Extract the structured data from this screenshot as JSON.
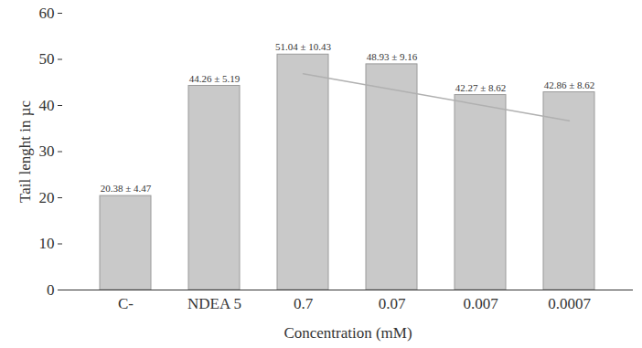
{
  "chart_data": {
    "type": "bar",
    "x_label": "Concentration (mM)",
    "y_label": "Tail lenght in µc",
    "categories": [
      "C-",
      "NDEA 5",
      "0.7",
      "0.07",
      "0.007",
      "0.0007"
    ],
    "values": [
      20.38,
      44.26,
      51.04,
      48.93,
      42.27,
      42.86
    ],
    "value_labels": [
      "20.38 ± 4.47",
      "44.26 ± 5.19",
      "51.04 ± 10.43",
      "48.93 ± 9.16",
      "42.27 ± 8.62",
      "42.86 ± 8.62"
    ],
    "data_labels": true,
    "color": "#c9c9c9",
    "trend_line": {
      "categories": [
        "0.7",
        "0.0007"
      ],
      "values": [
        46.9,
        36.7
      ],
      "color": "#b0b0b0"
    },
    "ylim": [
      0,
      60
    ],
    "yticks": [
      0,
      10,
      20,
      30,
      40,
      50,
      60
    ],
    "grid": false
  }
}
